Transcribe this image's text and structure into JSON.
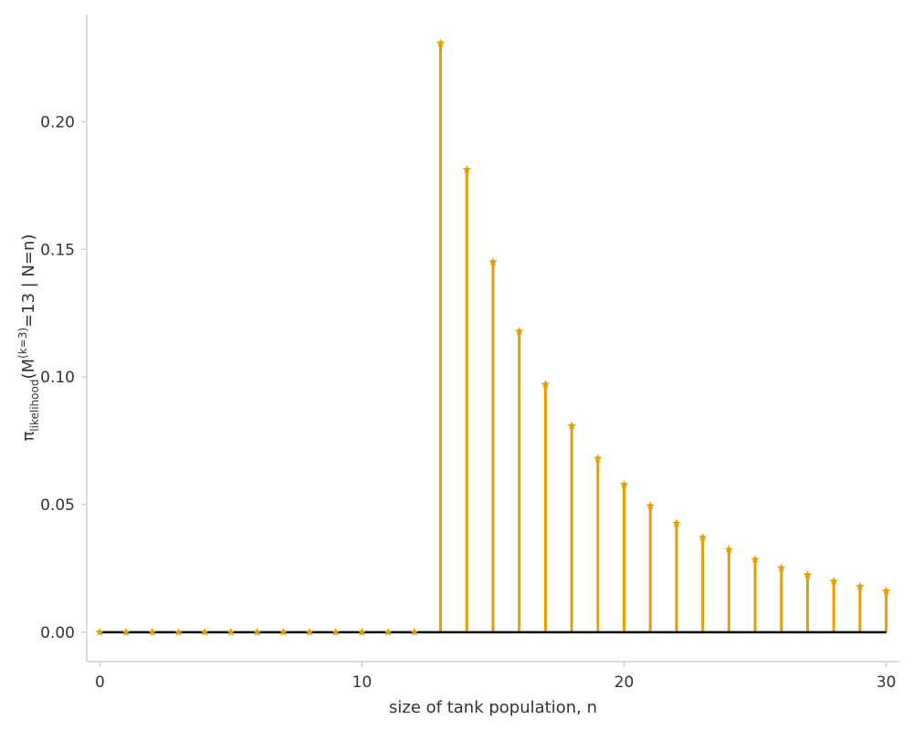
{
  "chart_data": {
    "type": "stem",
    "xlabel": "size of tank population, n",
    "ylabel": {
      "base": "π",
      "base_sub": "likelihood",
      "arg_open": "(M",
      "arg_sup": "(k=3)",
      "arg_close": "=13 | N=n)"
    },
    "xlim": [
      -0.5,
      30.5
    ],
    "ylim": [
      -0.0115,
      0.242
    ],
    "x_ticks": [
      0,
      10,
      20,
      30
    ],
    "x_tick_labels": [
      "0",
      "10",
      "20",
      "30"
    ],
    "y_ticks": [
      0.0,
      0.05,
      0.1,
      0.15,
      0.2
    ],
    "y_tick_labels": [
      "0.00",
      "0.05",
      "0.10",
      "0.15",
      "0.20"
    ],
    "marker": "star",
    "colors": {
      "stem": "#e69f00",
      "baseline": "#000000",
      "axis": "#cfcfcf",
      "text": "#333333"
    },
    "x": [
      0,
      1,
      2,
      3,
      4,
      5,
      6,
      7,
      8,
      9,
      10,
      11,
      12,
      13,
      14,
      15,
      16,
      17,
      18,
      19,
      20,
      21,
      22,
      23,
      24,
      25,
      26,
      27,
      28,
      29,
      30
    ],
    "y": [
      0,
      0,
      0,
      0,
      0,
      0,
      0,
      0,
      0,
      0,
      0,
      0,
      0,
      0.2308,
      0.1813,
      0.1451,
      0.1179,
      0.0971,
      0.0809,
      0.0681,
      0.0578,
      0.0495,
      0.0427,
      0.0371,
      0.0324,
      0.0285,
      0.0252,
      0.0224,
      0.02,
      0.0179,
      0.0161
    ]
  }
}
